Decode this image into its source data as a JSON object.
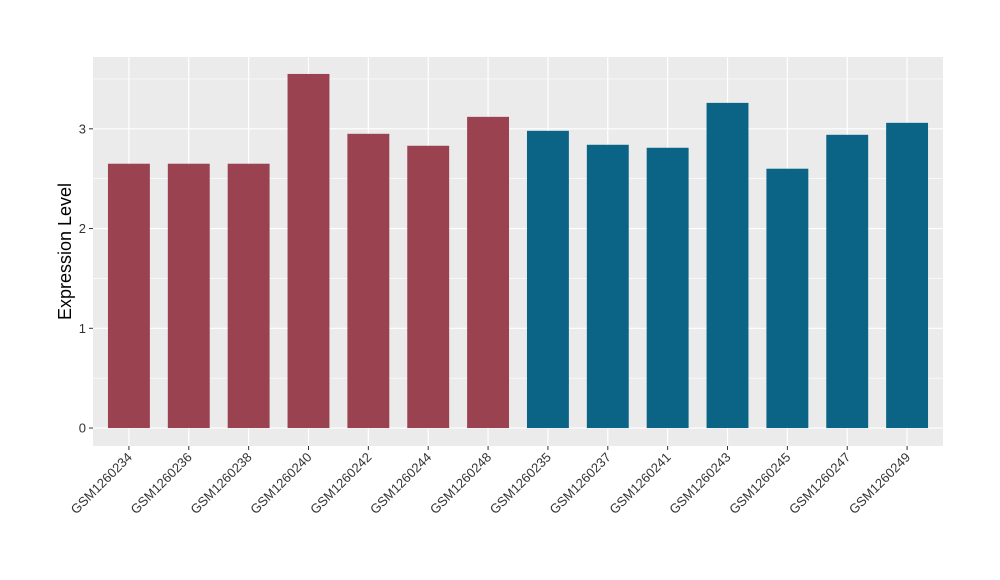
{
  "chart_data": {
    "type": "bar",
    "title": "",
    "xlabel": "",
    "ylabel": "Expression Level",
    "ylim": [
      -0.18,
      3.72
    ],
    "yticks": [
      0,
      1,
      2,
      3
    ],
    "grid": true,
    "legend": "none",
    "categories": [
      "GSM1260234",
      "GSM1260236",
      "GSM1260238",
      "GSM1260240",
      "GSM1260242",
      "GSM1260244",
      "GSM1260248",
      "GSM1260235",
      "GSM1260237",
      "GSM1260241",
      "GSM1260243",
      "GSM1260245",
      "GSM1260247",
      "GSM1260249"
    ],
    "values": [
      2.65,
      2.65,
      2.65,
      3.55,
      2.95,
      2.83,
      3.12,
      2.98,
      2.84,
      2.81,
      3.26,
      2.6,
      2.94,
      3.06
    ],
    "group_colors": [
      "#9a4250",
      "#9a4250",
      "#9a4250",
      "#9a4250",
      "#9a4250",
      "#9a4250",
      "#9a4250",
      "#0b6486",
      "#0b6486",
      "#0b6486",
      "#0b6486",
      "#0b6486",
      "#0b6486",
      "#0b6486"
    ],
    "panel_background": "#ebebeb",
    "grid_color": "#ffffff"
  }
}
